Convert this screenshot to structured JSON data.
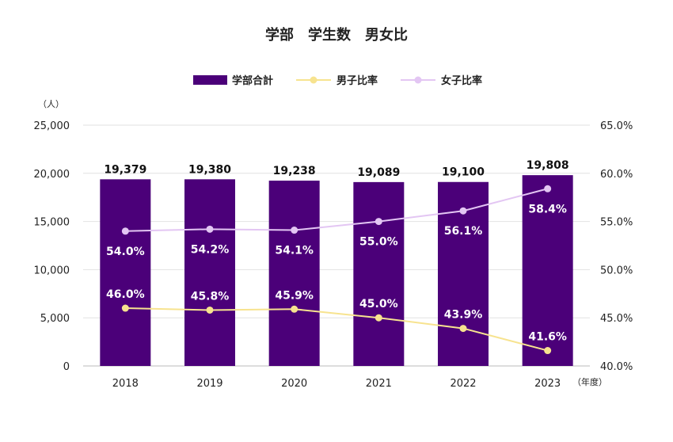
{
  "chart_data": {
    "type": "bar",
    "title": "学部　学生数　男女比",
    "categories": [
      "2018",
      "2019",
      "2020",
      "2021",
      "2022",
      "2023"
    ],
    "x_unit": "（年度）",
    "y_left": {
      "unit": "（人）",
      "range": [
        0,
        25000
      ],
      "ticks": [
        "0",
        "5,000",
        "10,000",
        "15,000",
        "20,000",
        "25,000"
      ]
    },
    "y_right": {
      "range": [
        40,
        65
      ],
      "ticks": [
        "40.0%",
        "45.0%",
        "50.0%",
        "55.0%",
        "60.0%",
        "65.0%"
      ]
    },
    "series": [
      {
        "name": "学部合計",
        "type": "bar",
        "axis": "left",
        "color": "#4b0079",
        "values": [
          19379,
          19380,
          19238,
          19089,
          19100,
          19808
        ],
        "labels": [
          "19,379",
          "19,380",
          "19,238",
          "19,089",
          "19,100",
          "19,808"
        ]
      },
      {
        "name": "男子比率",
        "type": "line",
        "axis": "right",
        "color": "#f7e38f",
        "values": [
          46.0,
          45.8,
          45.9,
          45.0,
          43.9,
          41.6
        ],
        "labels": [
          "46.0%",
          "45.8%",
          "45.9%",
          "45.0%",
          "43.9%",
          "41.6%"
        ]
      },
      {
        "name": "女子比率",
        "type": "line",
        "axis": "right",
        "color": "#e3c6f3",
        "values": [
          54.0,
          54.2,
          54.1,
          55.0,
          56.1,
          58.4
        ],
        "labels": [
          "54.0%",
          "54.2%",
          "54.1%",
          "55.0%",
          "56.1%",
          "58.4%"
        ]
      }
    ],
    "legend": "top-center",
    "grid": true
  }
}
